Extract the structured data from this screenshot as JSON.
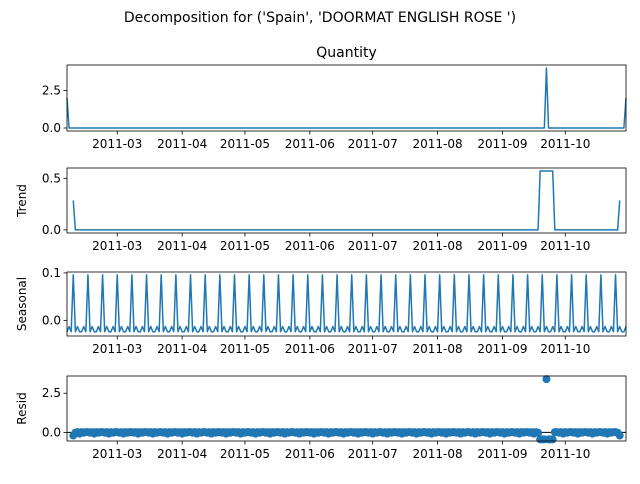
{
  "figure": {
    "suptitle": "Decomposition for ('Spain', 'DOORMAT ENGLISH ROSE ')",
    "colors": {
      "series": "#1f77b4",
      "axes": "#000000",
      "background": "#ffffff"
    }
  },
  "chart_data": [
    {
      "type": "line",
      "title": "Quantity",
      "ylabel": "",
      "x_ticks": [
        "2011-03",
        "2011-04",
        "2011-05",
        "2011-06",
        "2011-07",
        "2011-08",
        "2011-09",
        "2011-10"
      ],
      "y_ticks": [
        "0.0",
        "2.5"
      ],
      "ylim": [
        -0.2,
        4.2
      ],
      "xlim": [
        "2011-02-05",
        "2011-10-30"
      ],
      "baseline": 0,
      "points": [
        {
          "x": "2011-02-05",
          "y": 2.0
        },
        {
          "x": "2011-02-06",
          "y": 0
        },
        {
          "x": "2011-09-21",
          "y": 0
        },
        {
          "x": "2011-09-22",
          "y": 4.0
        },
        {
          "x": "2011-09-23",
          "y": 0
        },
        {
          "x": "2011-10-29",
          "y": 0
        },
        {
          "x": "2011-10-30",
          "y": 2.0
        }
      ]
    },
    {
      "type": "line",
      "title": "",
      "ylabel": "Trend",
      "x_ticks": [
        "2011-03",
        "2011-04",
        "2011-05",
        "2011-06",
        "2011-07",
        "2011-08",
        "2011-09",
        "2011-10"
      ],
      "y_ticks": [
        "0.0",
        "0.5"
      ],
      "ylim": [
        -0.03,
        0.6
      ],
      "xlim": [
        "2011-02-05",
        "2011-10-30"
      ],
      "baseline": 0,
      "points": [
        {
          "x": "2011-02-08",
          "y": 0.286
        },
        {
          "x": "2011-02-09",
          "y": 0
        },
        {
          "x": "2011-09-18",
          "y": 0
        },
        {
          "x": "2011-09-19",
          "y": 0.571
        },
        {
          "x": "2011-09-25",
          "y": 0.571
        },
        {
          "x": "2011-09-26",
          "y": 0
        },
        {
          "x": "2011-10-26",
          "y": 0
        },
        {
          "x": "2011-10-27",
          "y": 0.286
        }
      ]
    },
    {
      "type": "line",
      "title": "",
      "ylabel": "Seasonal",
      "x_ticks": [
        "2011-03",
        "2011-04",
        "2011-05",
        "2011-06",
        "2011-07",
        "2011-08",
        "2011-09",
        "2011-10"
      ],
      "y_ticks": [
        "0.0",
        "0.1"
      ],
      "ylim": [
        -0.033,
        0.102
      ],
      "xlim": [
        "2011-02-05",
        "2011-10-30"
      ],
      "period_days": 7,
      "weekly_pattern": [
        -0.024,
        -0.013,
        -0.024,
        0.096,
        -0.024,
        -0.013,
        -0.024
      ]
    },
    {
      "type": "scatter",
      "title": "",
      "ylabel": "Resid",
      "x_ticks": [
        "2011-03",
        "2011-04",
        "2011-05",
        "2011-06",
        "2011-07",
        "2011-08",
        "2011-09",
        "2011-10"
      ],
      "y_ticks": [
        "0.0",
        "2.5"
      ],
      "ylim": [
        -0.55,
        3.6
      ],
      "xlim": [
        "2011-02-05",
        "2011-10-30"
      ],
      "zero_line": true,
      "baseline_values": [
        0.02,
        -0.02,
        0.02,
        -0.08,
        0.02,
        -0.02,
        0.02
      ],
      "overrides": [
        {
          "x": "2011-02-08",
          "y": -0.2
        },
        {
          "x": "2011-09-19",
          "y": -0.45
        },
        {
          "x": "2011-09-20",
          "y": -0.45
        },
        {
          "x": "2011-09-21",
          "y": -0.45
        },
        {
          "x": "2011-09-22",
          "y": 3.4
        },
        {
          "x": "2011-09-23",
          "y": -0.45
        },
        {
          "x": "2011-09-24",
          "y": -0.45
        },
        {
          "x": "2011-09-25",
          "y": -0.45
        },
        {
          "x": "2011-10-27",
          "y": -0.2
        }
      ]
    }
  ]
}
